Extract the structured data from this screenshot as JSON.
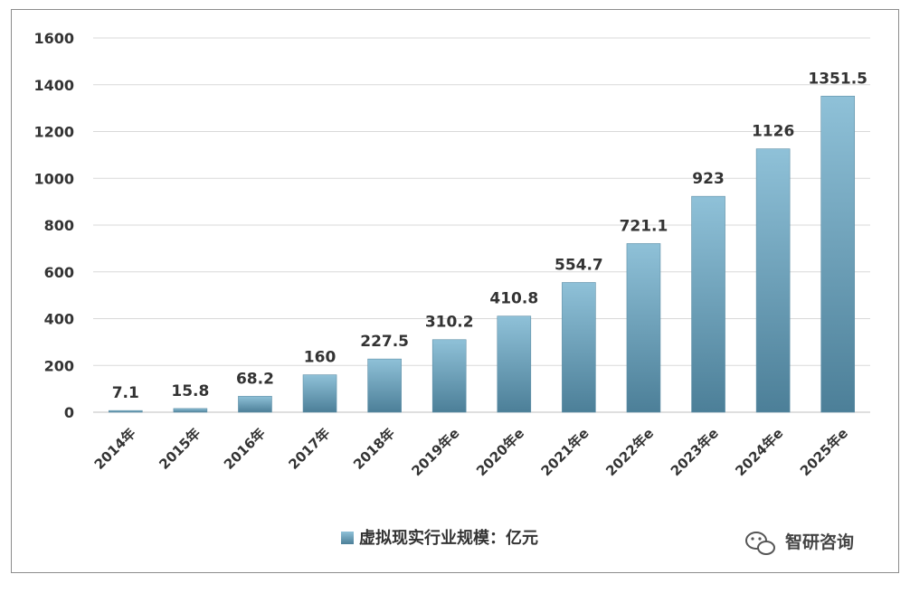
{
  "chart_data": {
    "type": "bar",
    "categories": [
      "2014年",
      "2015年",
      "2016年",
      "2017年",
      "2018年",
      "2019年e",
      "2020年e",
      "2021年e",
      "2022年e",
      "2023年e",
      "2024年e",
      "2025年e"
    ],
    "series": [
      {
        "name": "虚拟现实行业规模：亿元",
        "values": [
          7.1,
          15.8,
          68.2,
          160,
          227.5,
          310.2,
          410.8,
          554.7,
          721.1,
          923,
          1126,
          1351.5
        ],
        "labels": [
          "7.1",
          "15.8",
          "68.2",
          "160",
          "227.5",
          "310.2",
          "410.8",
          "554.7",
          "721.1",
          "923",
          "1126",
          "1351.5"
        ]
      }
    ],
    "yticks": [
      "0",
      "200",
      "400",
      "600",
      "800",
      "1000",
      "1200",
      "1400",
      "1600"
    ],
    "ylim": [
      0,
      1600
    ],
    "grid": true,
    "legend_position": "bottom",
    "colors": {
      "bar_top": "#8fc1d8",
      "bar_bottom": "#4c7f98",
      "grid": "#d9d9d9"
    }
  },
  "watermark": {
    "text": "智研咨询",
    "icon": "wechat-icon"
  }
}
